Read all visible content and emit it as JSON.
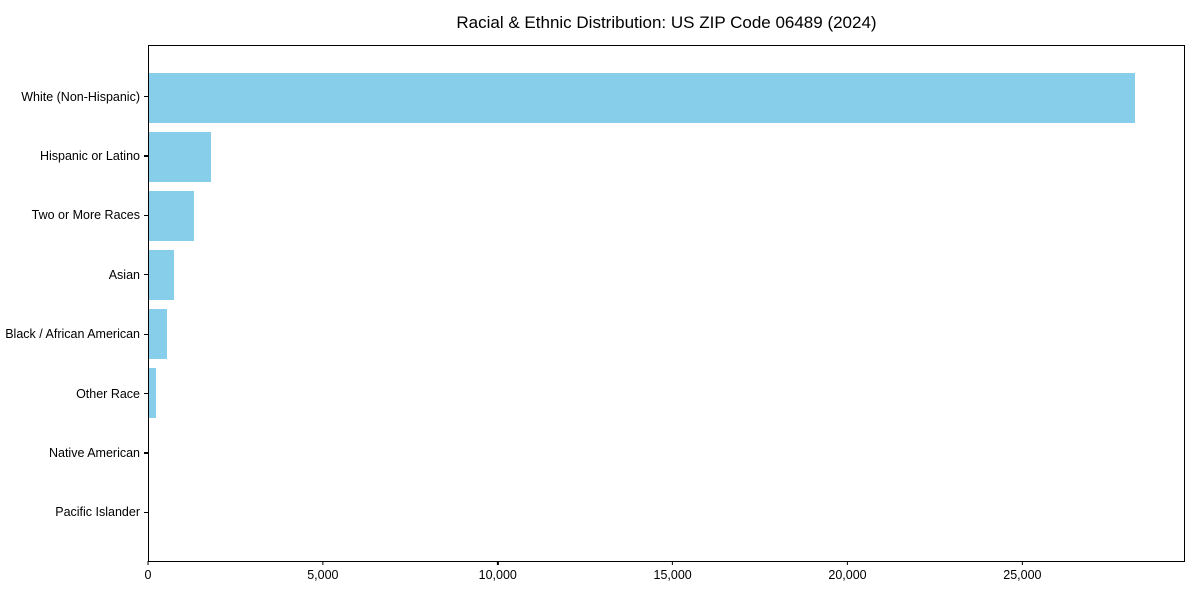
{
  "chart_data": {
    "type": "bar",
    "orientation": "horizontal",
    "title": "Racial & Ethnic Distribution: US ZIP Code 06489 (2024)",
    "categories": [
      "White (Non-Hispanic)",
      "Hispanic or Latino",
      "Two or More Races",
      "Asian",
      "Black / African American",
      "Other Race",
      "Native American",
      "Pacific Islander"
    ],
    "values": [
      28250,
      1770,
      1290,
      730,
      520,
      200,
      0,
      0
    ],
    "xlabel": "",
    "ylabel": "",
    "xlim": [
      0,
      29650
    ],
    "xticks": [
      0,
      5000,
      10000,
      15000,
      20000,
      25000
    ],
    "xtick_labels": [
      "0",
      "5,000",
      "10,000",
      "15,000",
      "20,000",
      "25,000"
    ],
    "grid": false,
    "legend": "none",
    "bar_color": "#87CEEB",
    "axis_color": "#000000",
    "background_color": "#FFFFFF"
  }
}
